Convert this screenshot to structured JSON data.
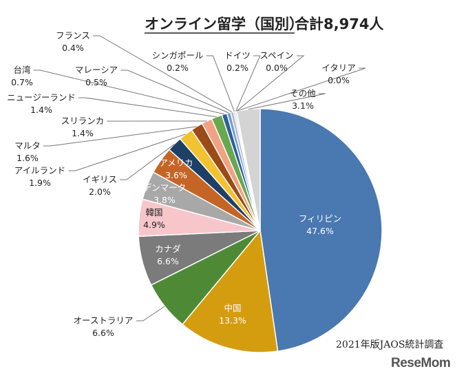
{
  "chart_data": {
    "type": "pie",
    "title": "オンライン留学（国別）",
    "title_total": "合計8,974人",
    "slices": [
      {
        "name": "フィリピン",
        "value": 47.6,
        "label": "47.6%",
        "color": "#4a78b0"
      },
      {
        "name": "中国",
        "value": 13.3,
        "label": "13.3%",
        "color": "#d49d10"
      },
      {
        "name": "オーストラリア",
        "value": 6.6,
        "label": "6.6%",
        "color": "#4e8a35"
      },
      {
        "name": "カナダ",
        "value": 6.6,
        "label": "6.6%",
        "color": "#7b7b7b"
      },
      {
        "name": "韓国",
        "value": 4.9,
        "label": "4.9%",
        "color": "#f6c6cb"
      },
      {
        "name": "デンマーク",
        "value": 3.8,
        "label": "3.8%",
        "color": "#a8a8a8"
      },
      {
        "name": "アメリカ",
        "value": 3.6,
        "label": "3.6%",
        "color": "#c46526"
      },
      {
        "name": "イギリス",
        "value": 2.0,
        "label": "2.0%",
        "color": "#1e3f66"
      },
      {
        "name": "アイルランド",
        "value": 1.9,
        "label": "1.9%",
        "color": "#f2c230"
      },
      {
        "name": "マルタ",
        "value": 1.6,
        "label": "1.6%",
        "color": "#9c4a17"
      },
      {
        "name": "スリランカ",
        "value": 1.4,
        "label": "1.4%",
        "color": "#f0a383"
      },
      {
        "name": "ニュージーランド",
        "value": 1.4,
        "label": "1.4%",
        "color": "#6aa84f"
      },
      {
        "name": "台湾",
        "value": 0.7,
        "label": "0.7%",
        "color": "#2f5f9a"
      },
      {
        "name": "マレーシア",
        "value": 0.5,
        "label": "0.5%",
        "color": "#6f9fd8"
      },
      {
        "name": "フランス",
        "value": 0.4,
        "label": "0.4%",
        "color": "#b7b7b7"
      },
      {
        "name": "シンガポール",
        "value": 0.2,
        "label": "0.2%",
        "color": "#8fb4e3"
      },
      {
        "name": "ドイツ",
        "value": 0.2,
        "label": "0.2%",
        "color": "#c9c9c9"
      },
      {
        "name": "スペイン",
        "value": 0.0,
        "label": "0.0%",
        "color": "#9dc3e6"
      },
      {
        "name": "イタリア",
        "value": 0.0,
        "label": "0.0%",
        "color": "#bfbfbf"
      },
      {
        "name": "その他",
        "value": 3.1,
        "label": "3.1%",
        "color": "#d4d4d4"
      }
    ],
    "legend": "none"
  },
  "source_note": "2021年版JAOS統計調査",
  "brand": "ReseMom"
}
